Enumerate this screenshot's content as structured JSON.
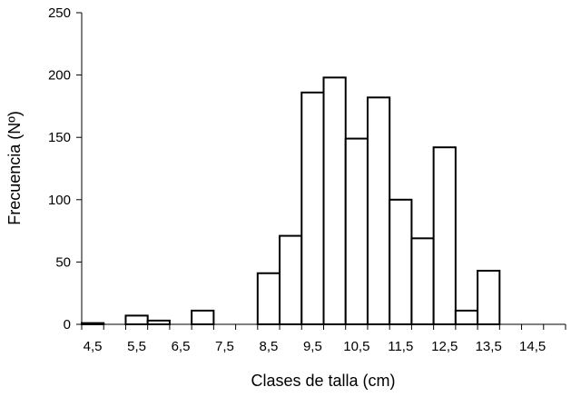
{
  "chart_data": {
    "type": "bar",
    "xlabel": "Clases de talla (cm)",
    "ylabel": "Frecuencia (Nº)",
    "ylim": [
      0,
      250
    ],
    "yticks": [
      0,
      50,
      100,
      150,
      200,
      250
    ],
    "xlim": [
      4.25,
      15.25
    ],
    "bin_width": 0.5,
    "xtick_labels": [
      "4,5",
      "5,5",
      "6,5",
      "7,5",
      "8,5",
      "9,5",
      "10,5",
      "11,5",
      "12,5",
      "13,5",
      "14,5"
    ],
    "xtick_values": [
      4.5,
      5.5,
      6.5,
      7.5,
      8.5,
      9.5,
      10.5,
      11.5,
      12.5,
      13.5,
      14.5
    ],
    "bins": [
      4.5,
      5.0,
      5.5,
      6.0,
      6.5,
      7.0,
      7.5,
      8.0,
      8.5,
      9.0,
      9.5,
      10.0,
      10.5,
      11.0,
      11.5,
      12.0,
      12.5,
      13.0,
      13.5,
      14.0,
      14.5,
      15.0
    ],
    "values": [
      1,
      0,
      7,
      3,
      0,
      11,
      0,
      0,
      41,
      71,
      186,
      198,
      149,
      182,
      100,
      69,
      142,
      11,
      43,
      0,
      0,
      0
    ],
    "grid": false,
    "legend": "none",
    "bar_fill": "#ffffff",
    "bar_stroke": "#000000"
  }
}
